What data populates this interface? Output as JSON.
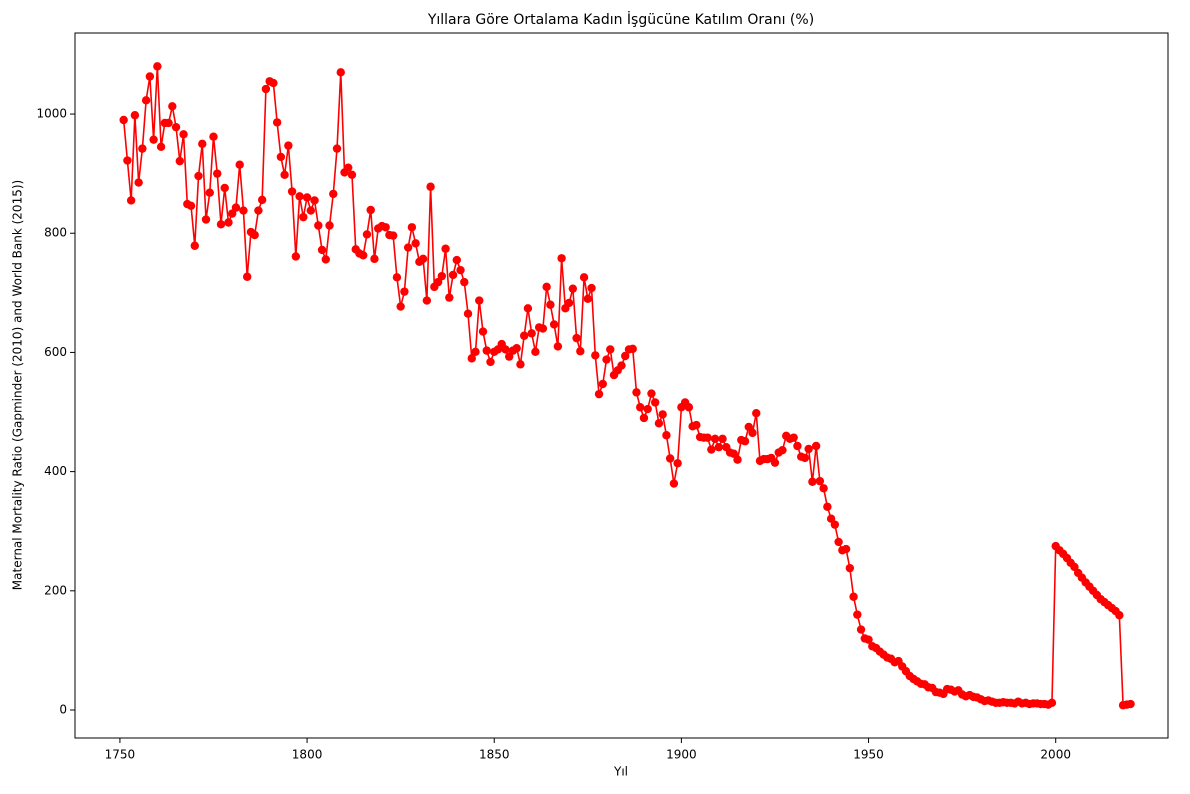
{
  "chart_data": {
    "type": "line",
    "title": "Yıllara Göre Ortalama Kadın İşgücüne Katılım Oranı (%)",
    "x_label": "Yıl",
    "y_label": "Maternal Mortality Ratio (Gapminder (2010) and World Bank (2015))",
    "x": [
      1751,
      1752,
      1753,
      1754,
      1755,
      1756,
      1757,
      1758,
      1759,
      1760,
      1761,
      1762,
      1763,
      1764,
      1765,
      1766,
      1767,
      1768,
      1769,
      1770,
      1771,
      1772,
      1773,
      1774,
      1775,
      1776,
      1777,
      1778,
      1779,
      1780,
      1781,
      1782,
      1783,
      1784,
      1785,
      1786,
      1787,
      1788,
      1789,
      1790,
      1791,
      1792,
      1793,
      1794,
      1795,
      1796,
      1797,
      1798,
      1799,
      1800,
      1801,
      1802,
      1803,
      1804,
      1805,
      1806,
      1807,
      1808,
      1809,
      1810,
      1811,
      1812,
      1813,
      1814,
      1815,
      1816,
      1817,
      1818,
      1819,
      1820,
      1821,
      1822,
      1823,
      1824,
      1825,
      1826,
      1827,
      1828,
      1829,
      1830,
      1831,
      1832,
      1833,
      1834,
      1835,
      1836,
      1837,
      1838,
      1839,
      1840,
      1841,
      1842,
      1843,
      1844,
      1845,
      1846,
      1847,
      1848,
      1849,
      1850,
      1851,
      1852,
      1853,
      1854,
      1855,
      1856,
      1857,
      1858,
      1859,
      1860,
      1861,
      1862,
      1863,
      1864,
      1865,
      1866,
      1867,
      1868,
      1869,
      1870,
      1871,
      1872,
      1873,
      1874,
      1875,
      1876,
      1877,
      1878,
      1879,
      1880,
      1881,
      1882,
      1883,
      1884,
      1885,
      1886,
      1887,
      1888,
      1889,
      1890,
      1891,
      1892,
      1893,
      1894,
      1895,
      1896,
      1897,
      1898,
      1899,
      1900,
      1901,
      1902,
      1903,
      1904,
      1905,
      1906,
      1907,
      1908,
      1909,
      1910,
      1911,
      1912,
      1913,
      1914,
      1915,
      1916,
      1917,
      1918,
      1919,
      1920,
      1921,
      1922,
      1923,
      1924,
      1925,
      1926,
      1927,
      1928,
      1929,
      1930,
      1931,
      1932,
      1933,
      1934,
      1935,
      1936,
      1937,
      1938,
      1939,
      1940,
      1941,
      1942,
      1943,
      1944,
      1945,
      1946,
      1947,
      1948,
      1949,
      1950,
      1951,
      1952,
      1953,
      1954,
      1955,
      1956,
      1957,
      1958,
      1959,
      1960,
      1961,
      1962,
      1963,
      1964,
      1965,
      1966,
      1967,
      1968,
      1969,
      1970,
      1971,
      1972,
      1973,
      1974,
      1975,
      1976,
      1977,
      1978,
      1979,
      1980,
      1981,
      1982,
      1983,
      1984,
      1985,
      1986,
      1987,
      1988,
      1989,
      1990,
      1991,
      1992,
      1993,
      1994,
      1995,
      1996,
      1997,
      1998,
      1999,
      2000,
      2001,
      2002,
      2003,
      2004,
      2005,
      2006,
      2007,
      2008,
      2009,
      2010,
      2011,
      2012,
      2013,
      2014,
      2015,
      2016,
      2017,
      2018,
      2019,
      2020
    ],
    "series": [
      {
        "name": "Maternal Mortality Ratio",
        "color": "#ff0000",
        "values": [
          990,
          922,
          855,
          998,
          885,
          942,
          1023,
          1063,
          957,
          1080,
          945,
          985,
          985,
          1013,
          978,
          921,
          966,
          849,
          846,
          779,
          896,
          950,
          823,
          868,
          962,
          900,
          815,
          876,
          818,
          833,
          843,
          915,
          838,
          727,
          802,
          797,
          838,
          856,
          1042,
          1055,
          1052,
          986,
          928,
          898,
          947,
          870,
          761,
          862,
          827,
          860,
          838,
          855,
          813,
          772,
          756,
          813,
          866,
          942,
          1070,
          902,
          910,
          898,
          773,
          766,
          763,
          798,
          839,
          757,
          808,
          812,
          810,
          797,
          796,
          726,
          677,
          702,
          776,
          810,
          783,
          752,
          757,
          687,
          878,
          710,
          718,
          728,
          774,
          692,
          730,
          755,
          738,
          718,
          665,
          590,
          601,
          687,
          635,
          603,
          584,
          601,
          605,
          614,
          605,
          593,
          603,
          607,
          580,
          628,
          674,
          632,
          601,
          642,
          640,
          710,
          680,
          647,
          610,
          758,
          674,
          683,
          707,
          624,
          602,
          726,
          690,
          708,
          595,
          530,
          547,
          588,
          605,
          562,
          570,
          578,
          594,
          605,
          606,
          533,
          508,
          490,
          505,
          531,
          516,
          481,
          496,
          461,
          422,
          380,
          414,
          508,
          516,
          508,
          476,
          478,
          458,
          457,
          457,
          437,
          455,
          441,
          455,
          441,
          432,
          430,
          420,
          453,
          451,
          475,
          465,
          498,
          418,
          421,
          421,
          423,
          415,
          432,
          436,
          460,
          455,
          457,
          443,
          425,
          423,
          438,
          383,
          443,
          384,
          372,
          341,
          321,
          311,
          282,
          268,
          270,
          238,
          190,
          160,
          135,
          120,
          118,
          107,
          104,
          98,
          93,
          88,
          86,
          80,
          82,
          73,
          65,
          57,
          52,
          48,
          44,
          43,
          38,
          37,
          30,
          29,
          27,
          35,
          34,
          31,
          33,
          26,
          23,
          25,
          22,
          21,
          18,
          15,
          16,
          14,
          12,
          12,
          13,
          12,
          12,
          11,
          14,
          11,
          12,
          10,
          11,
          11,
          10,
          10,
          9,
          12,
          275,
          268,
          262,
          255,
          247,
          240,
          230,
          222,
          214,
          207,
          200,
          193,
          186,
          181,
          176,
          171,
          166,
          159,
          8,
          9,
          10
        ]
      }
    ],
    "xlim": [
      1738,
      2030
    ],
    "ylim": [
      -47,
      1136
    ],
    "xticks": [
      1750,
      1800,
      1850,
      1900,
      1950,
      2000
    ],
    "yticks": [
      0,
      200,
      400,
      600,
      800,
      1000
    ],
    "grid": false
  }
}
